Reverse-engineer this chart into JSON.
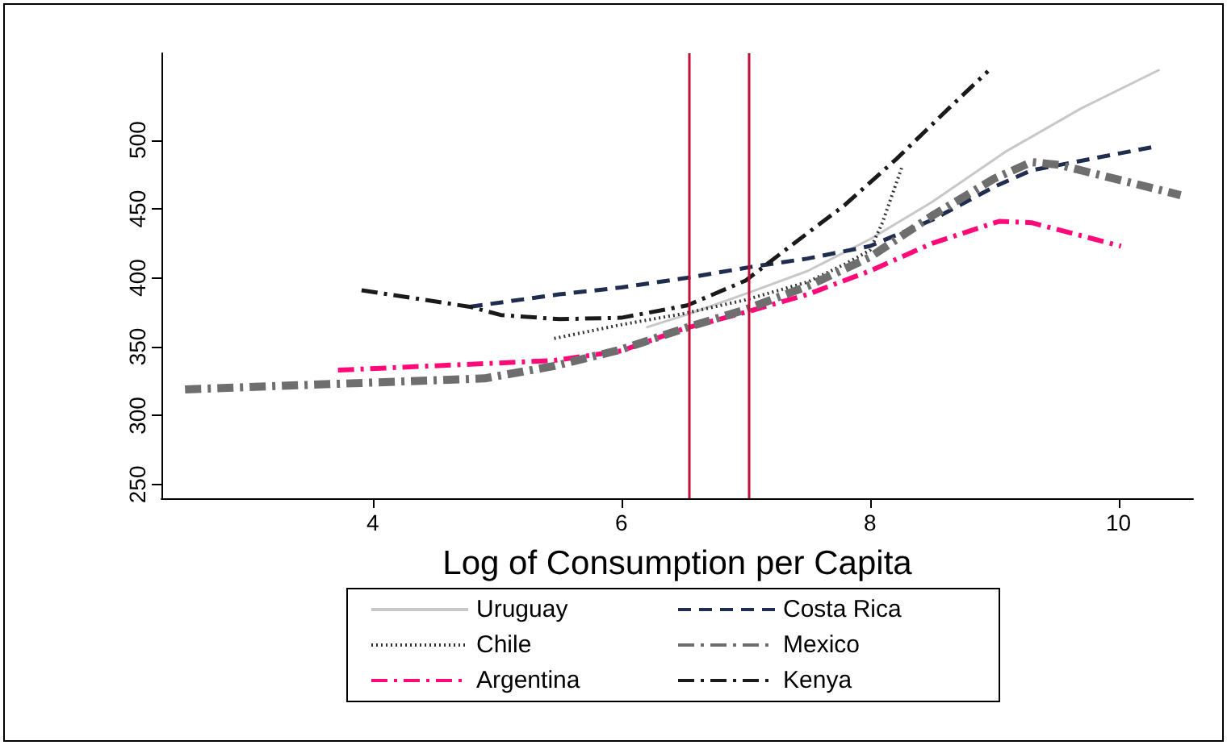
{
  "chart_data": {
    "type": "line",
    "xlabel": "Log of Consumption per Capita",
    "xlim": [
      2.3,
      10.6
    ],
    "xticks": [
      4,
      6,
      8,
      10
    ],
    "ylim": [
      240,
      563
    ],
    "yticks": [
      250,
      300,
      350,
      400,
      450,
      500
    ],
    "grid": false,
    "legend": "bottom",
    "marker": "none",
    "ref_lines": [
      {
        "axis": "x",
        "value": 6.55,
        "color": "#c0103a"
      },
      {
        "axis": "x",
        "value": 7.02,
        "color": "#c0103a"
      }
    ],
    "series": [
      {
        "name": "Uruguay",
        "color": "#c8c8c8",
        "line_style": "solid",
        "x": [
          6.2,
          6.55,
          7.05,
          7.5,
          8,
          8.5,
          9.1,
          9.7,
          10.33
        ],
        "values": [
          364,
          374,
          390,
          405,
          428,
          455,
          492,
          523,
          551
        ]
      },
      {
        "name": "Chile",
        "color": "#333333",
        "line_style": "dotted",
        "x": [
          5.46,
          6,
          6.5,
          7,
          7.5,
          7.8,
          8,
          8.1,
          8.26
        ],
        "values": [
          356,
          366,
          374,
          384,
          397,
          410,
          420,
          440,
          481
        ]
      },
      {
        "name": "Argentina",
        "color": "#ff0a78",
        "line_style": "dashdot",
        "x": [
          3.72,
          5.46,
          6,
          6.5,
          7,
          7.5,
          8,
          8.5,
          9.04,
          9.3,
          10.02
        ],
        "values": [
          333,
          340,
          347,
          363,
          375,
          388,
          405,
          425,
          441,
          440,
          423
        ]
      },
      {
        "name": "Costa Rica",
        "color": "#1f2d4f",
        "line_style": "dashed",
        "x": [
          4.78,
          5.5,
          6,
          6.53,
          7.05,
          7.5,
          8,
          8.5,
          9,
          9.3,
          10.28
        ],
        "values": [
          379,
          388,
          393,
          400,
          408,
          414,
          423,
          442,
          466,
          478,
          495
        ]
      },
      {
        "name": "Mexico",
        "color": "#6e6e6e",
        "line_style": "dashdot",
        "x": [
          2.49,
          4.9,
          5.46,
          6,
          6.53,
          7,
          7.5,
          8,
          8.5,
          9,
          9.3,
          9.52,
          10.5
        ],
        "values": [
          319,
          327,
          336,
          348,
          364,
          377,
          394,
          415,
          445,
          472,
          484,
          482,
          460
        ]
      },
      {
        "name": "Kenya",
        "color": "#1a1a1a",
        "line_style": "dashdot",
        "x": [
          3.91,
          4.78,
          5.03,
          5.5,
          6,
          6.53,
          7,
          7.36,
          7.8,
          8.21,
          8.6,
          8.95
        ],
        "values": [
          391,
          379,
          373,
          370,
          371,
          380,
          398,
          423,
          453,
          486,
          520,
          550
        ]
      }
    ]
  }
}
